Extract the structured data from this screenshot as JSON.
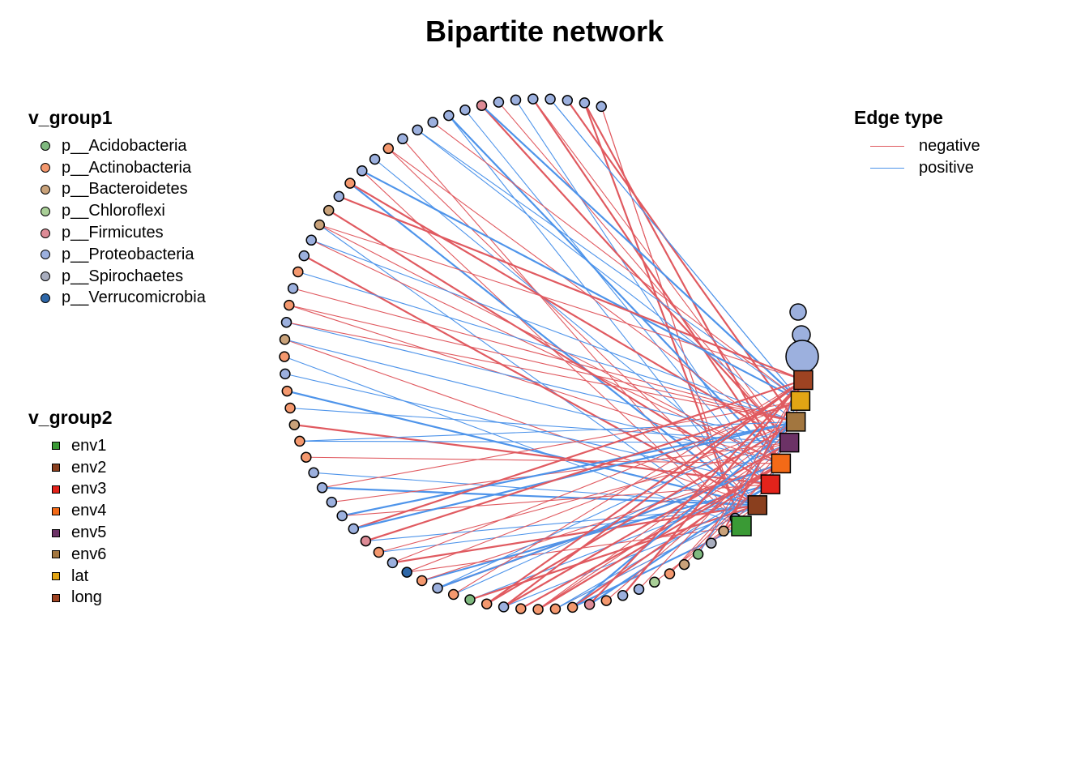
{
  "title": "Bipartite network",
  "legend_group1": {
    "title": "v_group1",
    "items": [
      {
        "label": "p__Acidobacteria",
        "color": "#7FB97F"
      },
      {
        "label": "p__Actinobacteria",
        "color": "#F4986E"
      },
      {
        "label": "p__Bacteroidetes",
        "color": "#C9A27A"
      },
      {
        "label": "p__Chloroflexi",
        "color": "#A9CF97"
      },
      {
        "label": "p__Firmicutes",
        "color": "#DD8B96"
      },
      {
        "label": "p__Proteobacteria",
        "color": "#9CB0DE"
      },
      {
        "label": "p__Spirochaetes",
        "color": "#A8ADBE"
      },
      {
        "label": "p__Verrucomicrobia",
        "color": "#2E67A8"
      }
    ]
  },
  "legend_group2": {
    "title": "v_group2",
    "items": [
      {
        "label": "env1",
        "color": "#3A9A35"
      },
      {
        "label": "env2",
        "color": "#8A3F1E"
      },
      {
        "label": "env3",
        "color": "#E3231B"
      },
      {
        "label": "env4",
        "color": "#F36A17"
      },
      {
        "label": "env5",
        "color": "#6C3266"
      },
      {
        "label": "env6",
        "color": "#A2763F"
      },
      {
        "label": "lat",
        "color": "#E2A514"
      },
      {
        "label": "long",
        "color": "#9E4322"
      }
    ]
  },
  "legend_edges": {
    "title": "Edge type",
    "items": [
      {
        "label": "negative",
        "color": "#E05A60"
      },
      {
        "label": "positive",
        "color": "#4E94EA"
      }
    ]
  },
  "network": {
    "taxa_nodes": [
      "Proteobacteria",
      "Proteobacteria",
      "Proteobacteria",
      "Proteobacteria",
      "Proteobacteria",
      "Proteobacteria",
      "Proteobacteria",
      "Firmicutes",
      "Proteobacteria",
      "Proteobacteria",
      "Proteobacteria",
      "Proteobacteria",
      "Proteobacteria",
      "Actinobacteria",
      "Proteobacteria",
      "Proteobacteria",
      "Actinobacteria",
      "Proteobacteria",
      "Bacteroidetes",
      "Bacteroidetes",
      "Proteobacteria",
      "Proteobacteria",
      "Actinobacteria",
      "Proteobacteria",
      "Actinobacteria",
      "Proteobacteria",
      "Bacteroidetes",
      "Actinobacteria",
      "Proteobacteria",
      "Actinobacteria",
      "Actinobacteria",
      "Bacteroidetes",
      "Actinobacteria",
      "Actinobacteria",
      "Proteobacteria",
      "Proteobacteria",
      "Proteobacteria",
      "Proteobacteria",
      "Proteobacteria",
      "Firmicutes",
      "Actinobacteria",
      "Proteobacteria",
      "Verrucomicrobia",
      "Actinobacteria",
      "Proteobacteria",
      "Actinobacteria",
      "Acidobacteria",
      "Actinobacteria",
      "Proteobacteria",
      "Actinobacteria",
      "Actinobacteria",
      "Actinobacteria",
      "Actinobacteria",
      "Firmicutes",
      "Actinobacteria",
      "Proteobacteria",
      "Proteobacteria",
      "Chloroflexi",
      "Actinobacteria",
      "Bacteroidetes",
      "Acidobacteria",
      "Spirochaetes",
      "Bacteroidetes",
      "Proteobacteria"
    ],
    "env_nodes": [
      "long",
      "lat",
      "env6",
      "env5",
      "env4",
      "env3",
      "env2",
      "env1"
    ],
    "hub_node": "Proteobacteria",
    "edges": [
      {
        "from": 9,
        "to": "env1",
        "type": "positive"
      },
      {
        "from": 48,
        "to": "env1",
        "type": "positive"
      },
      {
        "from": 31,
        "to": "long",
        "type": "positive"
      }
    ]
  }
}
